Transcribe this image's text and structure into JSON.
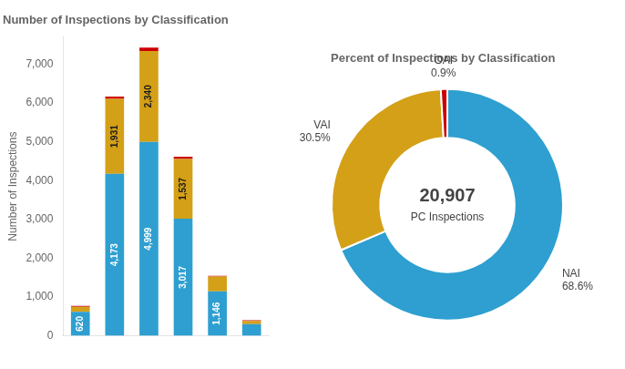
{
  "chart_data": [
    {
      "type": "bar",
      "title": "Number of Inspections by Classification",
      "ylabel": "Number of Inspections",
      "categories": [
        null,
        null,
        null,
        null,
        null,
        null
      ],
      "stacked": true,
      "grid": false,
      "data_labels": true,
      "ylim": [
        0,
        7700
      ],
      "yticks": [
        0,
        {
          "value": 1000,
          "label": "1,000"
        },
        {
          "value": 2000,
          "label": "2,000"
        },
        {
          "value": 3000,
          "label": "3,000"
        },
        {
          "value": 4000,
          "label": "4,000"
        },
        {
          "value": 5000,
          "label": "5,000"
        },
        {
          "value": 6000,
          "label": "6,000"
        },
        {
          "value": 7000,
          "label": "7,000"
        }
      ],
      "series": [
        {
          "color": "#2E9FD0",
          "values": [
            620,
            4173,
            4999,
            3017,
            1146,
            300
          ],
          "value_labels": [
            "620",
            "4,173",
            "4,999",
            "3,017",
            "1,146",
            null
          ]
        },
        {
          "color": "#D4A017",
          "values": [
            130,
            1931,
            2340,
            1537,
            380,
            85
          ],
          "value_labels": [
            null,
            "1,931",
            "2,340",
            "1,537",
            null,
            null
          ]
        },
        {
          "color": "#CC0000",
          "values": [
            20,
            60,
            90,
            60,
            20,
            15
          ]
        }
      ]
    },
    {
      "type": "doughnut",
      "title": "Percent of Inspections by Classification",
      "categories": [
        "NAI",
        "VAI",
        "OAI"
      ],
      "values": [
        68.6,
        30.5,
        0.9
      ],
      "value_labels": [
        "68.6%",
        "30.5%",
        "0.9%"
      ],
      "colors": [
        "#2E9FD0",
        "#D4A017",
        "#CC0000"
      ],
      "data_labels": true,
      "annotations": [
        "20,907",
        "PC Inspections"
      ]
    }
  ]
}
